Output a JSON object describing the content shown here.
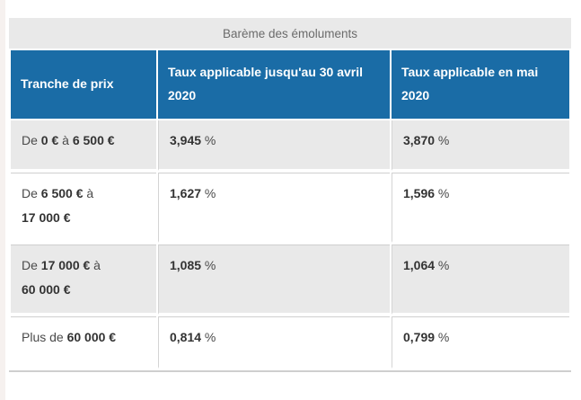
{
  "colors": {
    "header_bg": "#1a6ca6",
    "header_text": "#ffffff",
    "caption_bg": "#e9e9e9",
    "caption_text": "#6b6b6b",
    "row_alt_bg": "#e9e9e9",
    "row_bg": "#ffffff",
    "body_text": "#4a4a4a",
    "bold_text": "#333333",
    "divider": "#cfcfcf"
  },
  "table": {
    "caption": "Barème des émoluments",
    "percent_suffix": " %",
    "columns": [
      "Tranche de prix",
      "Taux applicable jusqu'au 30 avril 2020",
      "Taux applicable en mai 2020"
    ],
    "rows": [
      {
        "tranche": {
          "prefix": "De ",
          "amount1": "0 €",
          "connector": " à ",
          "amount2": "6 500 €"
        },
        "rate_april": "3,945",
        "rate_may": "3,870"
      },
      {
        "tranche": {
          "prefix": "De ",
          "amount1": "6 500 €",
          "connector": " à ",
          "amount2": "17 000 €"
        },
        "rate_april": "1,627",
        "rate_may": "1,596"
      },
      {
        "tranche": {
          "prefix": "De ",
          "amount1": "17 000 €",
          "connector": " à ",
          "amount2": "60 000 €"
        },
        "rate_april": "1,085",
        "rate_may": "1,064"
      },
      {
        "tranche": {
          "prefix": "Plus de ",
          "amount1": "60 000 €"
        },
        "rate_april": "0,814",
        "rate_may": "0,799"
      }
    ]
  }
}
